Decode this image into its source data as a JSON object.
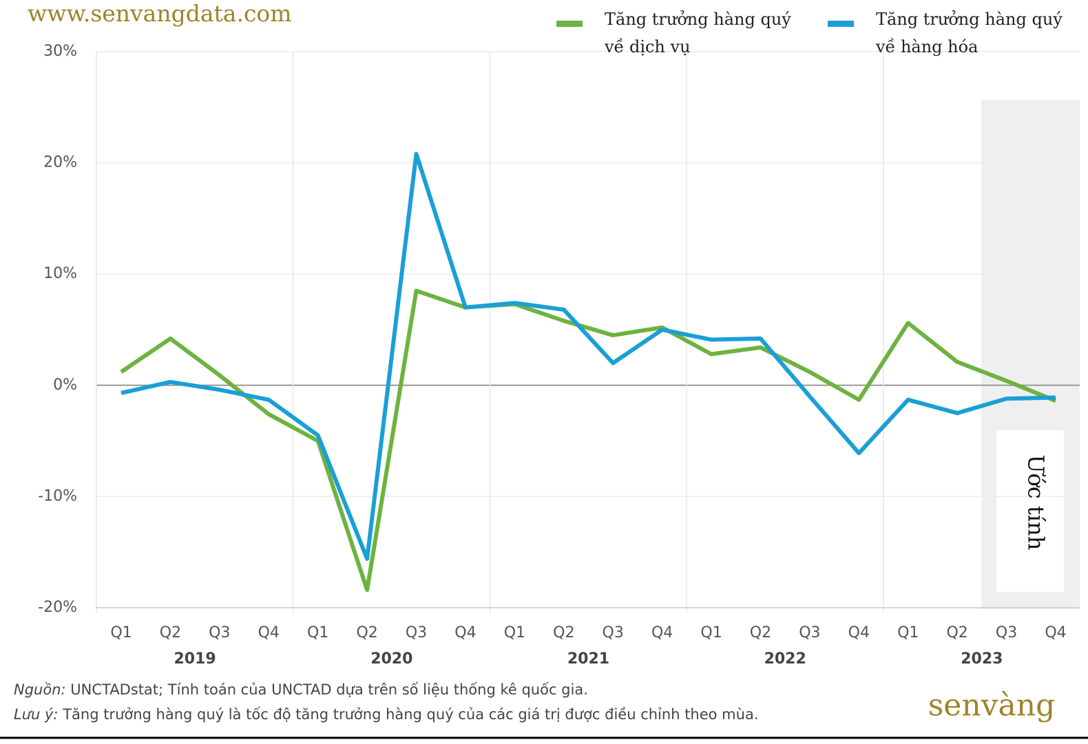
{
  "chart_data": {
    "type": "line",
    "watermark": "www.senvangdata.com",
    "logo": "senvàng",
    "categories": [
      "Q1",
      "Q2",
      "Q3",
      "Q4",
      "Q1",
      "Q2",
      "Q3",
      "Q4",
      "Q1",
      "Q2",
      "Q3",
      "Q4",
      "Q1",
      "Q2",
      "Q3",
      "Q4",
      "Q1",
      "Q2",
      "Q3",
      "Q4"
    ],
    "year_groups": [
      "2019",
      "2020",
      "2021",
      "2022",
      "2023"
    ],
    "series": [
      {
        "name": "Tăng trưởng hàng quý về  dịch vụ",
        "color": "#6db33f",
        "values": [
          1.2,
          4.2,
          0.9,
          -2.6,
          -5.0,
          -18.4,
          8.5,
          7.0,
          7.3,
          5.8,
          4.5,
          5.2,
          2.8,
          3.4,
          1.2,
          -1.3,
          5.6,
          2.1,
          0.4,
          -1.4
        ]
      },
      {
        "name": "Tăng trưởng hàng quý về hàng hóa",
        "color": "#1a9fd6",
        "values": [
          -0.7,
          0.3,
          -0.4,
          -1.3,
          -4.5,
          -15.6,
          20.8,
          7.0,
          7.4,
          6.8,
          2.0,
          5.0,
          4.1,
          4.2,
          -1.0,
          -6.1,
          -1.3,
          -2.5,
          -1.2,
          -1.1
        ]
      }
    ],
    "ylim": [
      -20,
      30
    ],
    "yticks": [
      {
        "value": -20,
        "label": "-20%"
      },
      {
        "value": -10,
        "label": "-10%"
      },
      {
        "value": 0,
        "label": "0%"
      },
      {
        "value": 10,
        "label": "10%"
      },
      {
        "value": 20,
        "label": "20%"
      },
      {
        "value": 30,
        "label": "30%"
      }
    ],
    "grid": true,
    "annotation": "Ước tính",
    "source_prefix": "Nguồn:",
    "source": "UNCTADstat; Tính toán của UNCTAD dựa trên số liệu thống kê quốc gia.",
    "note_prefix": "Lưu ý:",
    "note": "Tăng trưởng hàng quý là tốc độ tăng trưởng hàng quý của các giá trị được điều chỉnh theo mùa."
  }
}
